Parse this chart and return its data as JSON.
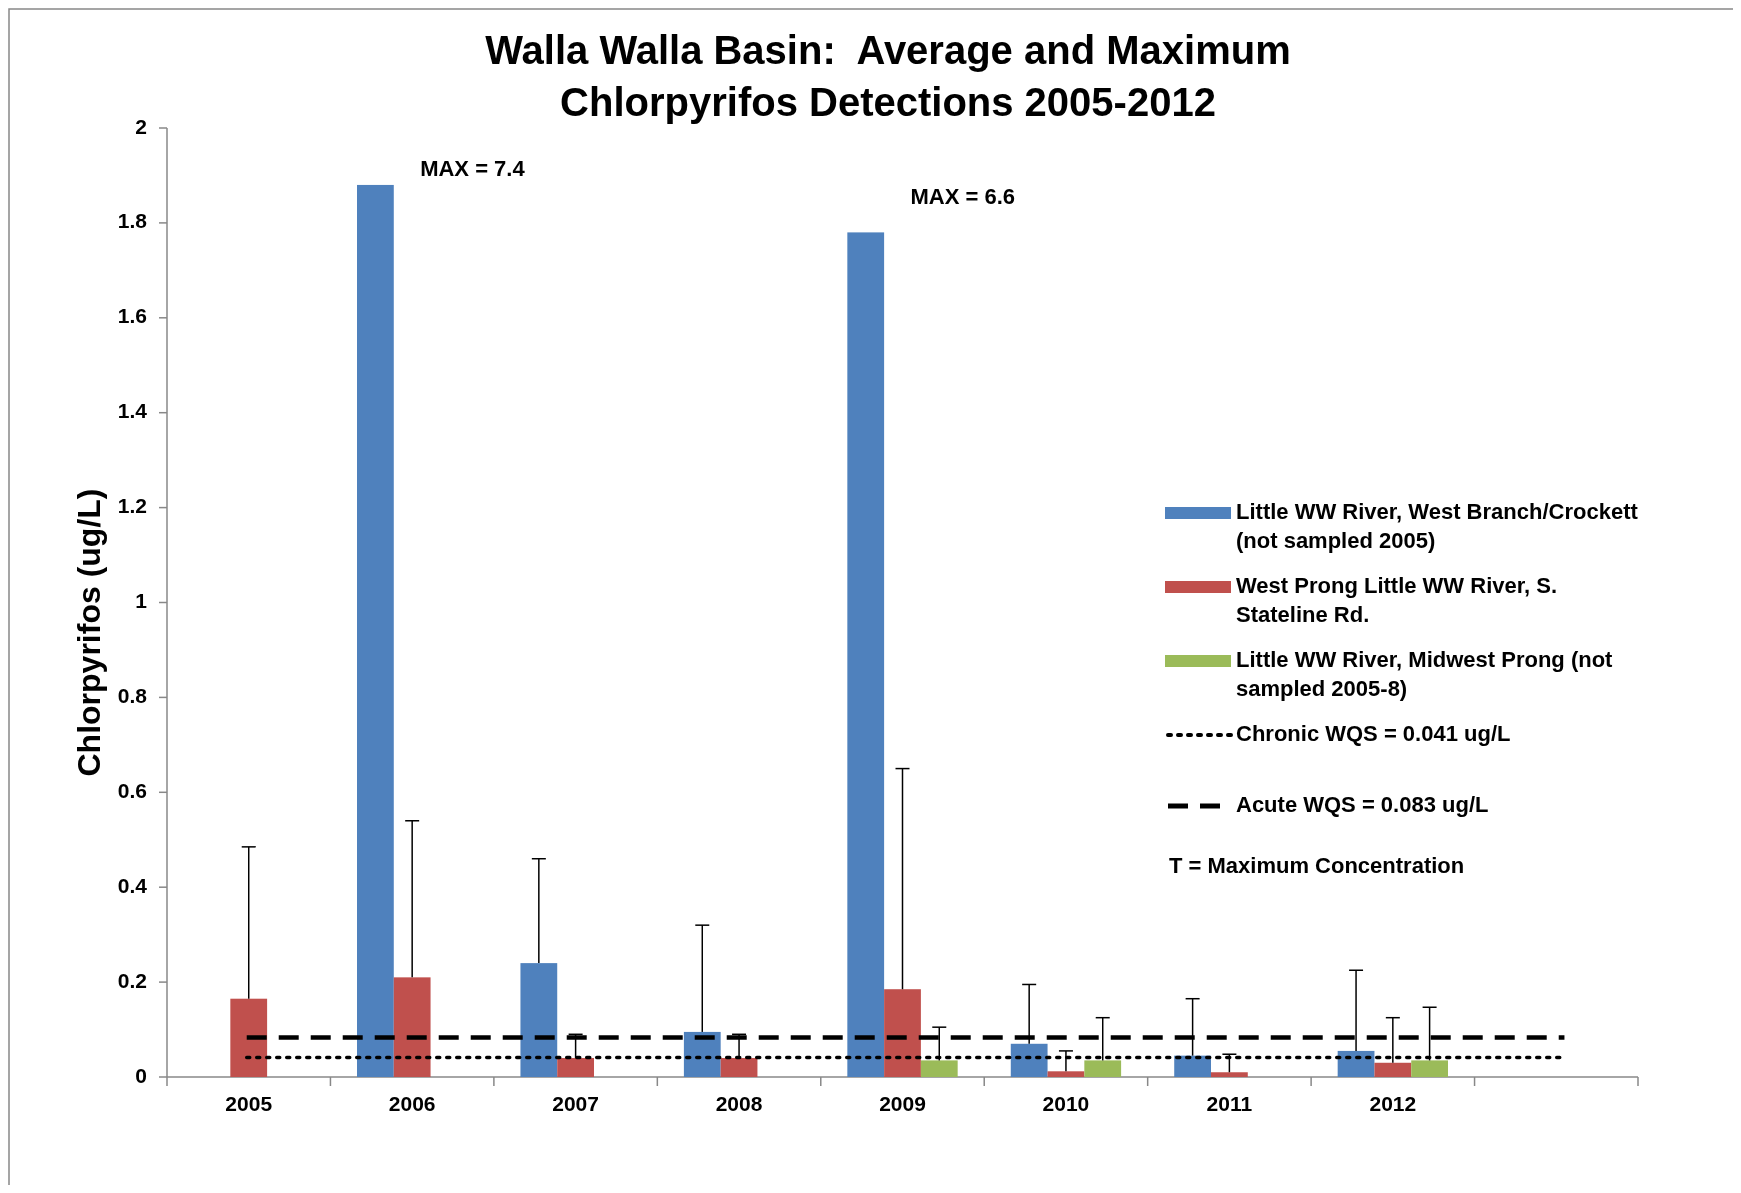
{
  "chart_data": {
    "type": "bar",
    "title": "Walla Walla Basin:  Average and Maximum Chlorpyrifos Detections 2005-2012",
    "ylabel": "Chlorpyrifos (ug/L)",
    "categories": [
      "2005",
      "2006",
      "2007",
      "2008",
      "2009",
      "2010",
      "2011",
      "2012",
      null
    ],
    "series": [
      {
        "name": "Little WW River, West Branch/Crockett (not sampled 2005)",
        "color": "#4f81bd",
        "values": [
          null,
          1.88,
          0.24,
          0.095,
          1.78,
          0.07,
          0.045,
          0.055,
          null
        ],
        "errors": [
          null,
          null,
          [
            0.24,
            0.46
          ],
          [
            0.095,
            0.32
          ],
          null,
          [
            0.07,
            0.195
          ],
          [
            0.045,
            0.165
          ],
          [
            0.055,
            0.225
          ],
          null
        ]
      },
      {
        "name": "West Prong Little WW River, S. Stateline Rd.",
        "color": "#c0504d",
        "values": [
          0.165,
          0.21,
          0.04,
          0.04,
          0.185,
          0.012,
          0.01,
          0.03,
          null
        ],
        "errors": [
          [
            0.165,
            0.485
          ],
          [
            0.21,
            0.54
          ],
          [
            0.04,
            0.09
          ],
          [
            0.04,
            0.09
          ],
          [
            0.185,
            0.65
          ],
          [
            0.012,
            0.055
          ],
          [
            0.01,
            0.048
          ],
          [
            0.03,
            0.125
          ],
          null
        ]
      },
      {
        "name": "Little WW River, Midwest Prong (not sampled 2005-8)",
        "color": "#9bbb59",
        "values": [
          null,
          null,
          null,
          null,
          0.035,
          0.035,
          null,
          0.035,
          null
        ],
        "errors": [
          null,
          null,
          null,
          null,
          [
            0.035,
            0.105
          ],
          [
            0.035,
            0.125
          ],
          null,
          [
            0.035,
            0.147
          ],
          null
        ]
      }
    ],
    "ref_lines": [
      {
        "axis": "y",
        "value": 0.041,
        "label": "Chronic WQS = 0.041 ug/L",
        "color": "#000000",
        "line_style": "dotted"
      },
      {
        "axis": "y",
        "value": 0.083,
        "label": "Acute WQS = 0.083 ug/L",
        "color": "#000000",
        "line_style": "dashed"
      }
    ],
    "annotations": [
      "MAX = 7.4",
      "MAX = 6.6",
      "T = Maximum Concentration"
    ],
    "ylim": [
      0,
      2
    ],
    "yticks": [
      0,
      0.2,
      0.4,
      0.6,
      0.8,
      1,
      1.2,
      1.4,
      1.6,
      1.8,
      2
    ],
    "legend": "right"
  }
}
